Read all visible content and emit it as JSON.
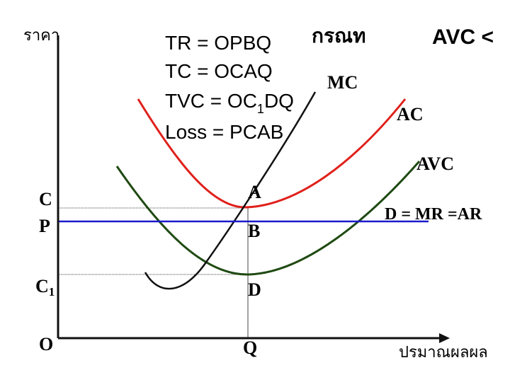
{
  "axes": {
    "y_label": "ราคา",
    "x_label": "ปรมาณผลผล",
    "origin": "O",
    "q": "Q",
    "c": "C",
    "p": "P",
    "c1": {
      "main": "C",
      "sub": "1"
    }
  },
  "heading": {
    "case": "กรณท",
    "avc": "AVC <"
  },
  "formulas": {
    "tr": "TR = OPBQ",
    "tc": "TC = OCAQ",
    "tvc": {
      "main": "TVC = OC",
      "sub": "1",
      "end": "DQ"
    },
    "loss": "Loss = PCAB"
  },
  "curves": {
    "mc": "MC",
    "ac": "AC",
    "avc": "AVC",
    "demand": "D = MR =AR"
  },
  "points": {
    "a": "A",
    "b": "B",
    "d": "D"
  }
}
